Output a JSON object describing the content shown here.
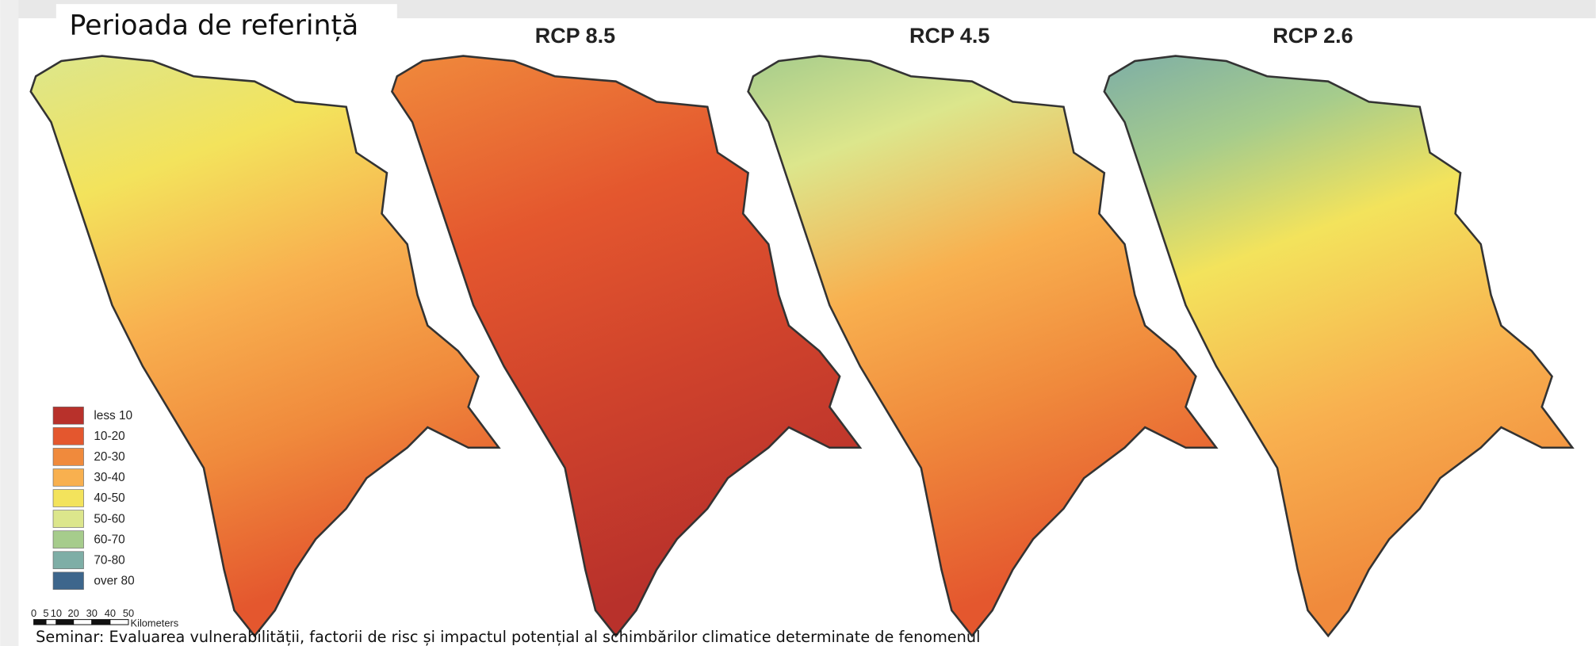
{
  "header": {
    "title": "Perioada de referință"
  },
  "panels": [
    "RCP 8.5",
    "RCP 4.5",
    "RCP 2.6"
  ],
  "legend": [
    {
      "label": "less 10",
      "color": "#b8312b"
    },
    {
      "label": "10-20",
      "color": "#e4572e"
    },
    {
      "label": "20-30",
      "color": "#f08a3c"
    },
    {
      "label": "30-40",
      "color": "#f8b04f"
    },
    {
      "label": "40-50",
      "color": "#f3e35c"
    },
    {
      "label": "50-60",
      "color": "#dce68c"
    },
    {
      "label": "60-70",
      "color": "#a6cc8c"
    },
    {
      "label": "70-80",
      "color": "#7eaea6"
    },
    {
      "label": "over 80",
      "color": "#3d668c"
    }
  ],
  "scale": {
    "ticks": [
      "0",
      "5",
      "10",
      "20",
      "30",
      "40",
      "50"
    ],
    "unit": "Kilometers"
  },
  "footer": "Seminar: Evaluarea vulnerabilității, factorii de risc și impactul potențial al schimbărilor climatice determinate de fenomenul"
}
